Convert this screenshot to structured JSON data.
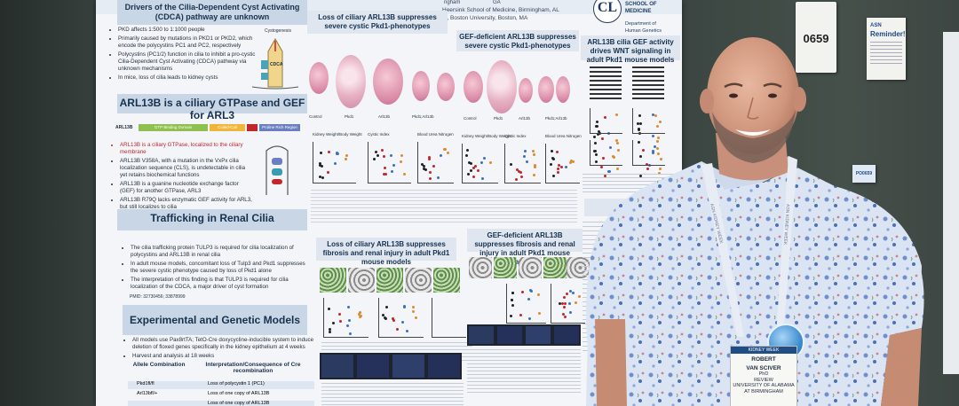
{
  "poster": {
    "banner_author_line": "Heersink School of Medicine, Birmingham, AL",
    "banner_author_line2": "College of Health & Rehabilitation Sciences, Boston University, Boston, MA",
    "banner_prefix": "ngham",
    "banner_loc": "GA",
    "logo_text": "SCHOOL OF MEDICINE",
    "logo_dept": "Department of Human Genetics",
    "left": {
      "intro_head": "Drivers of the Cilia-Dependent Cyst Activating (CDCA) pathway are unknown",
      "intro_bullets": [
        "PKD affects 1:500 to 1:1000 people",
        "Primarily caused by mutations in PKD1 or PKD2, which encode the polycystins PC1 and PC2, respectively",
        "Polycystins (PC1/2) function in cilia to inhibit a pro-cystic Cilia-Dependent Cyst Activating (CDCA) pathway via unknown mechanisms",
        "In mice, loss of cilia leads to kidney cysts"
      ],
      "cystogenesis_label": "Cystogenesis",
      "cdca_label": "CDCA",
      "arl_head": "ARL13B is a ciliary GTPase and GEF for ARL3",
      "domain_labels": [
        "ARL13B",
        "GTP Binding Domain",
        "Coiled-Coil",
        "Proline Rich Region"
      ],
      "arl_bullets": [
        "ARL13B is a ciliary GTPase, localized to the ciliary membrane",
        "ARL13B V358A, with a mutation in the VxPx cilia localization sequence (CLS), is undetectable in cilia yet retains biochemical functions",
        "ARL13B is a guanine nucleotide exchange factor (GEF) for another GTPase, ARL3",
        "ARL13B R79Q lacks enzymatic GEF activity for ARL3, but still localizes to cilia"
      ],
      "traffic_head": "Trafficking in Renal Cilia",
      "traffic_bullets": [
        "The cilia trafficking protein TULP3 is required for cilia localization of polycystins and ARL13B in renal cilia",
        "In adult mouse models, concomitant loss of Tulp3 and Pkd1 suppresses the severe cystic phenotype caused by loss of Pkd1 alone",
        "The interpretation of this finding is that TULP3 is required for cilia localization of the CDCA, a major driver of cyst formation"
      ],
      "traffic_ref": "PMID: 32730456; 33878999",
      "models_head": "Experimental and Genetic Models",
      "models_bullets": [
        "All models use Pax8rtTA; TetO-Cre doxycycline-inducible system to induce deletion of floxed genes specifically in the kidney epithelium at 4 weeks",
        "Harvest and analysis at 18 weeks"
      ],
      "table_headers": [
        "Allele Combination",
        "Interpretation/Consequence of Cre recombination"
      ],
      "table_rows": [
        {
          "allele": "Pkd1fl/fl",
          "meaning": "Loss of polycystin 1 (PC1)"
        },
        {
          "allele": "Arl13bfl/+",
          "meaning": "Loss of one copy of ARL13B"
        },
        {
          "allele": "",
          "meaning": "Loss of one copy of ARL13B"
        }
      ]
    },
    "middle": {
      "head1": "Loss of ciliary ARL13B suppresses severe cystic Pkd1-phenotypes",
      "head2": "GEF-deficient ARL13B suppresses severe cystic Pkd1-phenotypes",
      "head3": "Loss of ciliary ARL13B suppresses fibrosis and renal injury in adult Pkd1 mouse models",
      "head4": "GEF-deficient ARL13B suppresses fibrosis and renal injury in adult Pkd1 mouse models",
      "genotype_labels": [
        "Control",
        "Pkd1",
        "Arl13b",
        "Pkd1;Arl13b",
        "Control",
        "Pkd1",
        "Arl13b",
        "Pkd1;Arl13b"
      ],
      "plot_titles": [
        "Kidney Weight/Body Weight",
        "Cystic Index",
        "Blood Urea Nitrogen",
        "Kidney Weight/Body Weight",
        "Cystic Index",
        "Blood Urea Nitrogen"
      ]
    },
    "right": {
      "head": "ARL13B cilia GEF activity drives WNT signaling in adult Pkd1 mouse models",
      "summary_head": "Summ"
    }
  },
  "signs": {
    "booth_number": "0659",
    "reminder_logo": "ASN",
    "reminder_text": "Reminder!",
    "side_tag": "PO0659"
  },
  "badge": {
    "banner": "KIDNEY WEEK",
    "first_name": "ROBERT",
    "last_name": "VAN SCIVER",
    "degree": "PhD",
    "role": "REVIEW",
    "affiliation": "UNIVERSITY OF ALABAMA AT BIRMINGHAM"
  },
  "lanyard_text": "ASN KIDNEY WEEK"
}
